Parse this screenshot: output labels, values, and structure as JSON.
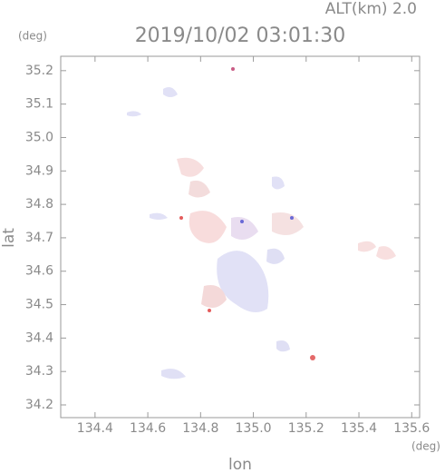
{
  "chart_data": {
    "type": "map",
    "title": "2019/10/02 03:01:30",
    "annotation": "ALT(km) 2.0",
    "x_label": "lon",
    "y_label": "lat",
    "x_unit": "(deg)",
    "y_unit": "(deg)",
    "xlim": [
      134.27,
      135.63
    ],
    "ylim": [
      34.162,
      35.243
    ],
    "xticks": [
      {
        "value": 134.4,
        "label": "134.4"
      },
      {
        "value": 134.6,
        "label": "134.6"
      },
      {
        "value": 134.8,
        "label": "134.8"
      },
      {
        "value": 135.0,
        "label": "135.0"
      },
      {
        "value": 135.2,
        "label": "135.2"
      },
      {
        "value": 135.4,
        "label": "135.4"
      },
      {
        "value": 135.6,
        "label": "135.6"
      }
    ],
    "yticks": [
      {
        "value": 34.2,
        "label": "34.2"
      },
      {
        "value": 34.3,
        "label": "34.3"
      },
      {
        "value": 34.4,
        "label": "34.4"
      },
      {
        "value": 34.5,
        "label": "34.5"
      },
      {
        "value": 34.6,
        "label": "34.6"
      },
      {
        "value": 34.7,
        "label": "34.7"
      },
      {
        "value": 34.8,
        "label": "34.8"
      },
      {
        "value": 34.9,
        "label": "34.9"
      },
      {
        "value": 35.0,
        "label": "35.0"
      },
      {
        "value": 35.1,
        "label": "35.1"
      },
      {
        "value": 35.2,
        "label": "35.2"
      }
    ]
  }
}
